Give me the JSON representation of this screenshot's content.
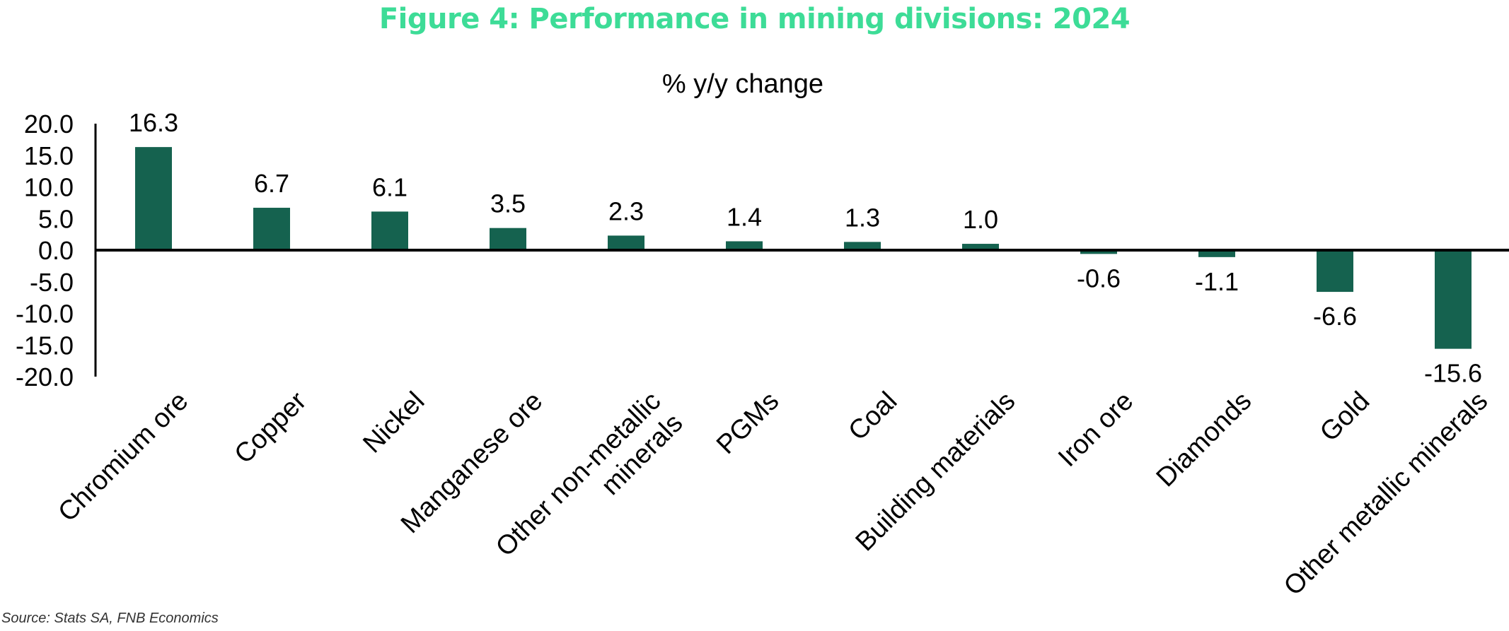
{
  "figure": {
    "title": "Figure 4: Performance in mining divisions: 2024",
    "source": "Source: Stats SA, FNB Economics"
  },
  "colors": {
    "title": "#3ddc97",
    "bar": "#15624f",
    "axis": "#000000",
    "text": "#000000"
  },
  "chart_data": {
    "type": "bar",
    "title": "% y/y change",
    "xlabel": "",
    "ylabel": "",
    "ylim": [
      -20,
      20
    ],
    "yticks": [
      20,
      15,
      10,
      5,
      0,
      -5,
      -10,
      -15,
      -20
    ],
    "ytick_labels": [
      "20.0",
      "15.0",
      "10.0",
      "5.0",
      "0.0",
      "-5.0",
      "-10.0",
      "-15.0",
      "-20.0"
    ],
    "categories": [
      "Chromium ore",
      "Copper",
      "Nickel",
      "Manganese ore",
      "Other non-metallic minerals",
      "PGMs",
      "Coal",
      "Building materials",
      "Iron ore",
      "Diamonds",
      "Gold",
      "Other metallic minerals"
    ],
    "category_lines": [
      [
        "Chromium ore"
      ],
      [
        "Copper"
      ],
      [
        "Nickel"
      ],
      [
        "Manganese ore"
      ],
      [
        "Other non-metallic",
        "minerals"
      ],
      [
        "PGMs"
      ],
      [
        "Coal"
      ],
      [
        "Building materials"
      ],
      [
        "Iron ore"
      ],
      [
        "Diamonds"
      ],
      [
        "Gold"
      ],
      [
        "Other metallic minerals"
      ]
    ],
    "values": [
      16.3,
      6.7,
      6.1,
      3.5,
      2.3,
      1.4,
      1.3,
      1.0,
      -0.6,
      -1.1,
      -6.6,
      -15.6
    ],
    "value_labels": [
      "16.3",
      "6.7",
      "6.1",
      "3.5",
      "2.3",
      "1.4",
      "1.3",
      "1.0",
      "-0.6",
      "-1.1",
      "-6.6",
      "-15.6"
    ],
    "grid": false,
    "legend": "none"
  }
}
